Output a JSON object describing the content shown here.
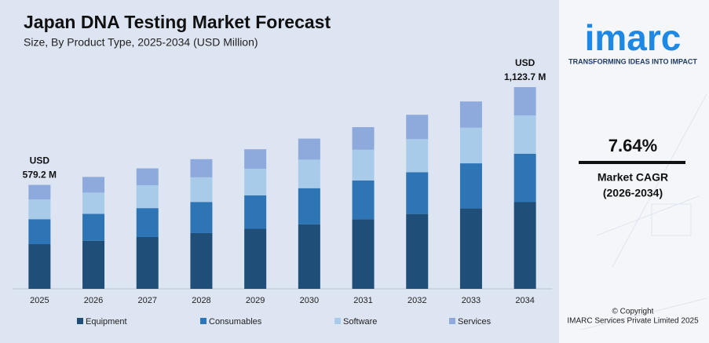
{
  "chart_data": {
    "type": "stacked-bar",
    "title": "Japan DNA Testing Market Forecast",
    "subtitle": "Size, By Product Type, 2025-2034 (USD Million)",
    "categories": [
      "2025",
      "2026",
      "2027",
      "2028",
      "2029",
      "2030",
      "2031",
      "2032",
      "2033",
      "2034"
    ],
    "series": [
      {
        "name": "Equipment",
        "color": "#1f4e79",
        "values": [
          249.1,
          268.1,
          288.6,
          310.6,
          334.4,
          359.9,
          387.4,
          417.0,
          448.8,
          483.2
        ]
      },
      {
        "name": "Consumables",
        "color": "#2e75b6",
        "values": [
          139.0,
          149.6,
          161.1,
          173.4,
          186.6,
          200.9,
          216.2,
          232.7,
          250.5,
          269.7
        ]
      },
      {
        "name": "Software",
        "color": "#a9cbea",
        "values": [
          110.0,
          118.5,
          127.5,
          137.3,
          147.7,
          159.0,
          171.2,
          184.2,
          198.3,
          213.5
        ]
      },
      {
        "name": "Services",
        "color": "#8ea9db",
        "values": [
          81.1,
          87.3,
          93.9,
          101.1,
          108.9,
          117.2,
          126.1,
          135.8,
          146.2,
          157.3
        ]
      }
    ],
    "annotations": [
      {
        "category": "2025",
        "lines": [
          "USD",
          "579.2 M"
        ]
      },
      {
        "category": "2034",
        "lines": [
          "USD",
          "1,123.7 M"
        ]
      }
    ]
  },
  "sidebar": {
    "logo": "imarc",
    "tagline": "TRANSFORMING IDEAS INTO IMPACT",
    "cagr": "7.64%",
    "cagr_label": "Market CAGR",
    "cagr_period": "(2026-2034)",
    "copyright": "© Copyright",
    "company": "IMARC Services Private Limited 2025"
  }
}
